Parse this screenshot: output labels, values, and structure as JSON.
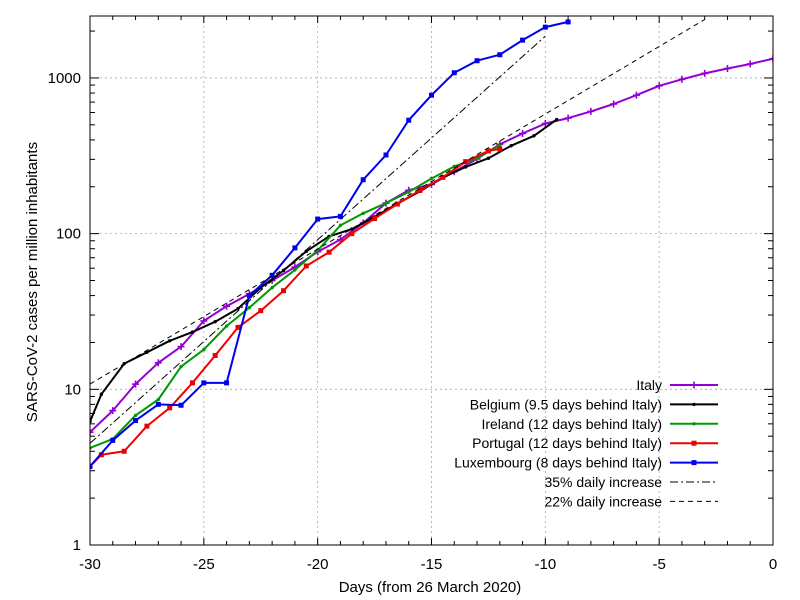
{
  "chart_data": {
    "type": "line",
    "title": "",
    "xlabel": "Days (from 26 March 2020)",
    "ylabel": "SARS-CoV-2 cases per million inhabitants",
    "xlim": [
      -30,
      0
    ],
    "ylim": [
      1,
      2500
    ],
    "yscale": "log",
    "grid": true,
    "legend_position": "bottom-right",
    "x_ticks": [
      -30,
      -25,
      -20,
      -15,
      -10,
      -5,
      0
    ],
    "x_tick_labels": [
      "-30",
      "-25",
      "-20",
      "-15",
      "-10",
      "-5",
      "0"
    ],
    "y_ticks": [
      1,
      10,
      100,
      1000
    ],
    "y_tick_labels": [
      "1",
      "10",
      "100",
      "1000"
    ],
    "series": [
      {
        "name": "Italy",
        "color": "#9400d3",
        "marker": "plus",
        "x": [
          -30,
          -29,
          -28,
          -27,
          -26,
          -25,
          -24,
          -23,
          -22,
          -21,
          -20,
          -19,
          -18,
          -17,
          -16,
          -15,
          -14,
          -13,
          -12,
          -11,
          -10,
          -9,
          -8,
          -7,
          -6,
          -5,
          -4,
          -3,
          -2,
          -1,
          0
        ],
        "y": [
          5.3,
          7.3,
          10.8,
          14.8,
          18.8,
          27.5,
          34.2,
          41.0,
          50.0,
          61.0,
          76.5,
          91.5,
          117,
          157,
          190,
          207,
          250,
          302,
          375,
          440,
          510,
          552,
          610,
          680,
          775,
          890,
          980,
          1070,
          1150,
          1230,
          1330
        ]
      },
      {
        "name": "Belgium (9.5 days behind Italy)",
        "color": "#000000",
        "marker": "dot",
        "x": [
          -30,
          -29.5,
          -28.5,
          -27.5,
          -26.5,
          -25.5,
          -24.5,
          -23.5,
          -22.5,
          -21.5,
          -20.5,
          -19.5,
          -18.5,
          -17.5,
          -16.5,
          -15.5,
          -14.5,
          -13.5,
          -12.5,
          -11.5,
          -10.5,
          -9.5
        ],
        "y": [
          6.2,
          9.3,
          14.6,
          17.3,
          20.5,
          23.3,
          27.2,
          33.0,
          45.0,
          58.0,
          77.0,
          96.0,
          107,
          128,
          156,
          187,
          230,
          268,
          305,
          367,
          425,
          540
        ]
      },
      {
        "name": "Ireland (12 days behind Italy)",
        "color": "#009900",
        "marker": "dot",
        "x": [
          -30,
          -29,
          -28,
          -27,
          -26,
          -25,
          -24,
          -23,
          -22,
          -21,
          -20,
          -19,
          -18,
          -17,
          -16,
          -15,
          -14,
          -13,
          -12
        ],
        "y": [
          4.2,
          4.8,
          6.8,
          8.6,
          14.0,
          18.0,
          25.5,
          33.5,
          45.0,
          58.5,
          78.0,
          113,
          135,
          157,
          185,
          226,
          270,
          305,
          370
        ]
      },
      {
        "name": "Portugal (12 days behind Italy)",
        "color": "#ee0000",
        "marker": "square",
        "x": [
          -30,
          -29.5,
          -28.5,
          -27.5,
          -26.5,
          -25.5,
          -24.5,
          -23.5,
          -22.5,
          -21.5,
          -20.5,
          -19.5,
          -18.5,
          -17.5,
          -16.5,
          -15.5,
          -14.5,
          -13.5,
          -12.5,
          -12
        ],
        "y": [
          3.2,
          3.8,
          4.0,
          5.8,
          7.6,
          11.0,
          16.5,
          25.0,
          32.0,
          43.0,
          62.0,
          76.0,
          100,
          125,
          155,
          190,
          230,
          290,
          340,
          350
        ]
      },
      {
        "name": "Luxembourg (8 days behind Italy)",
        "color": "#0000ee",
        "marker": "square",
        "x": [
          -30,
          -29,
          -28,
          -27,
          -26,
          -25,
          -24,
          -23,
          -22,
          -21,
          -20,
          -19,
          -18,
          -17,
          -16,
          -15,
          -14,
          -13,
          -12,
          -11,
          -10,
          -9
        ],
        "y": [
          3.2,
          4.7,
          6.3,
          8.0,
          7.9,
          11.0,
          11.0,
          40.0,
          54.0,
          81.0,
          124,
          129,
          222,
          320,
          535,
          775,
          1080,
          1290,
          1410,
          1750,
          2120,
          2290
        ]
      },
      {
        "name": "35% daily increase",
        "color": "#000000",
        "dash": "8,3,2,3",
        "x": [
          -30,
          -10
        ],
        "y": [
          4.5,
          1855
        ]
      },
      {
        "name": "22% daily increase",
        "color": "#000000",
        "dash": "5,4",
        "x": [
          -30,
          -3
        ],
        "y": [
          10.8,
          2374
        ]
      }
    ]
  }
}
